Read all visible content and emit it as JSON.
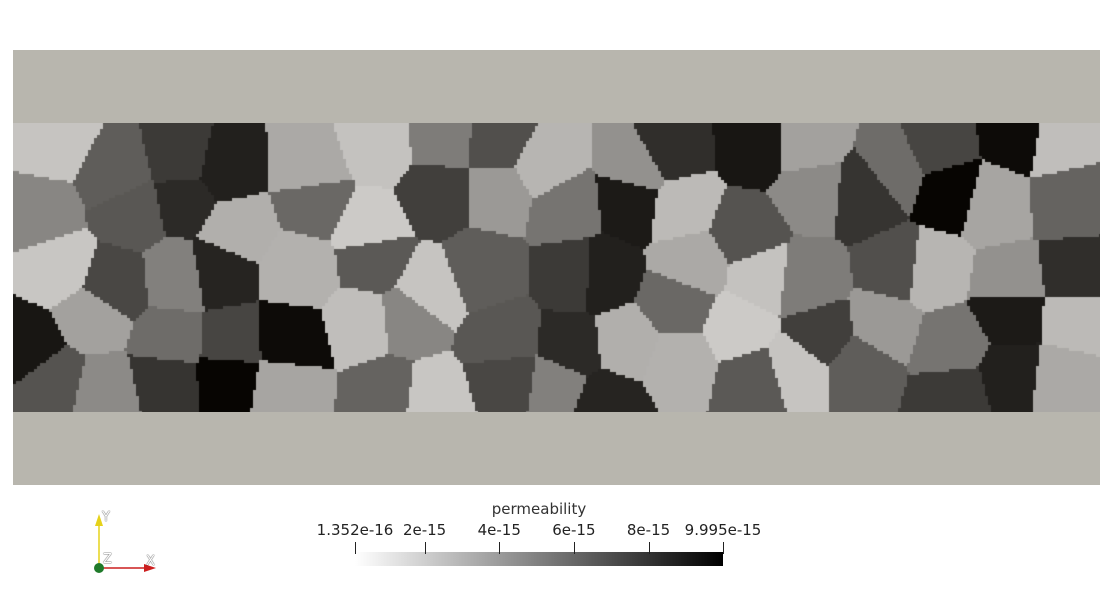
{
  "scene": {
    "background_color": "#ffffff",
    "slab_color": "#b8b6ae",
    "cell_fill_values": [
      0.05,
      0.55,
      0.72,
      0.85,
      0.18,
      0.06,
      0.4,
      0.62,
      0.12,
      0.3,
      0.78,
      0.9,
      0.22,
      0.48,
      0.67,
      0.95,
      0.08,
      0.35,
      0.58,
      0.8,
      0.15,
      0.5,
      0.02,
      0.7,
      0.26,
      0.44,
      0.88,
      0.1,
      0.6,
      0.33,
      0.75,
      0.98,
      0.2,
      0.52,
      0.04,
      0.66,
      0.38,
      0.83,
      0.14,
      0.57
    ]
  },
  "axes": {
    "x_label": "X",
    "y_label": "Y",
    "z_label": "Z",
    "x_color": "#cc1f1f",
    "y_color": "#e6d21a",
    "z_color": "#1f7a2a"
  },
  "colorbar": {
    "title": "permeability",
    "min": 1.352e-16,
    "max": 9.995e-15,
    "ticks": [
      {
        "label": "1.352e-16",
        "value": 1.352e-16
      },
      {
        "label": "2e-15",
        "value": 2e-15
      },
      {
        "label": "4e-15",
        "value": 4e-15
      },
      {
        "label": "6e-15",
        "value": 6e-15
      },
      {
        "label": "8e-15",
        "value": 8e-15
      },
      {
        "label": "9.995e-15",
        "value": 9.995e-15
      }
    ],
    "color_low": "#ffffff",
    "color_high": "#000000"
  }
}
